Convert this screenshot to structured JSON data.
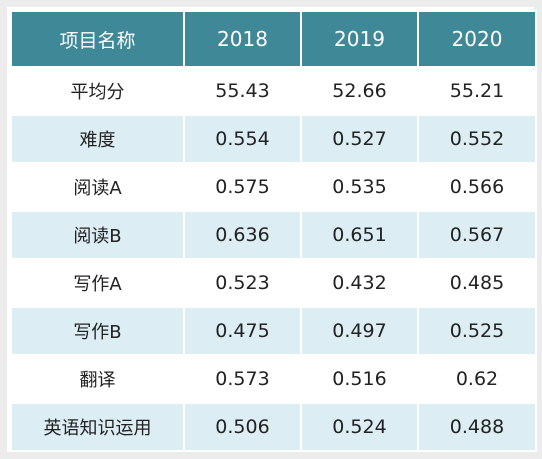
{
  "table": {
    "header": [
      "项目名称",
      "2018",
      "2019",
      "2020"
    ],
    "rows": [
      {
        "label": "平均分",
        "values": [
          "55.43",
          "52.66",
          "55.21"
        ]
      },
      {
        "label": "难度",
        "values": [
          "0.554",
          "0.527",
          "0.552"
        ]
      },
      {
        "label": "阅读A",
        "values": [
          "0.575",
          "0.535",
          "0.566"
        ]
      },
      {
        "label": "阅读B",
        "values": [
          "0.636",
          "0.651",
          "0.567"
        ]
      },
      {
        "label": "写作A",
        "values": [
          "0.523",
          "0.432",
          "0.485"
        ]
      },
      {
        "label": "写作B",
        "values": [
          "0.475",
          "0.497",
          "0.525"
        ]
      },
      {
        "label": "翻译",
        "values": [
          "0.573",
          "0.516",
          "0.62"
        ]
      },
      {
        "label": "英语知识运用",
        "values": [
          "0.506",
          "0.524",
          "0.488"
        ]
      }
    ]
  },
  "colors": {
    "header_bg": "#3e8898",
    "header_text": "#ffffff",
    "stripe": "#dcedf3",
    "row_bg": "#ffffff",
    "body_text": "#222222"
  }
}
